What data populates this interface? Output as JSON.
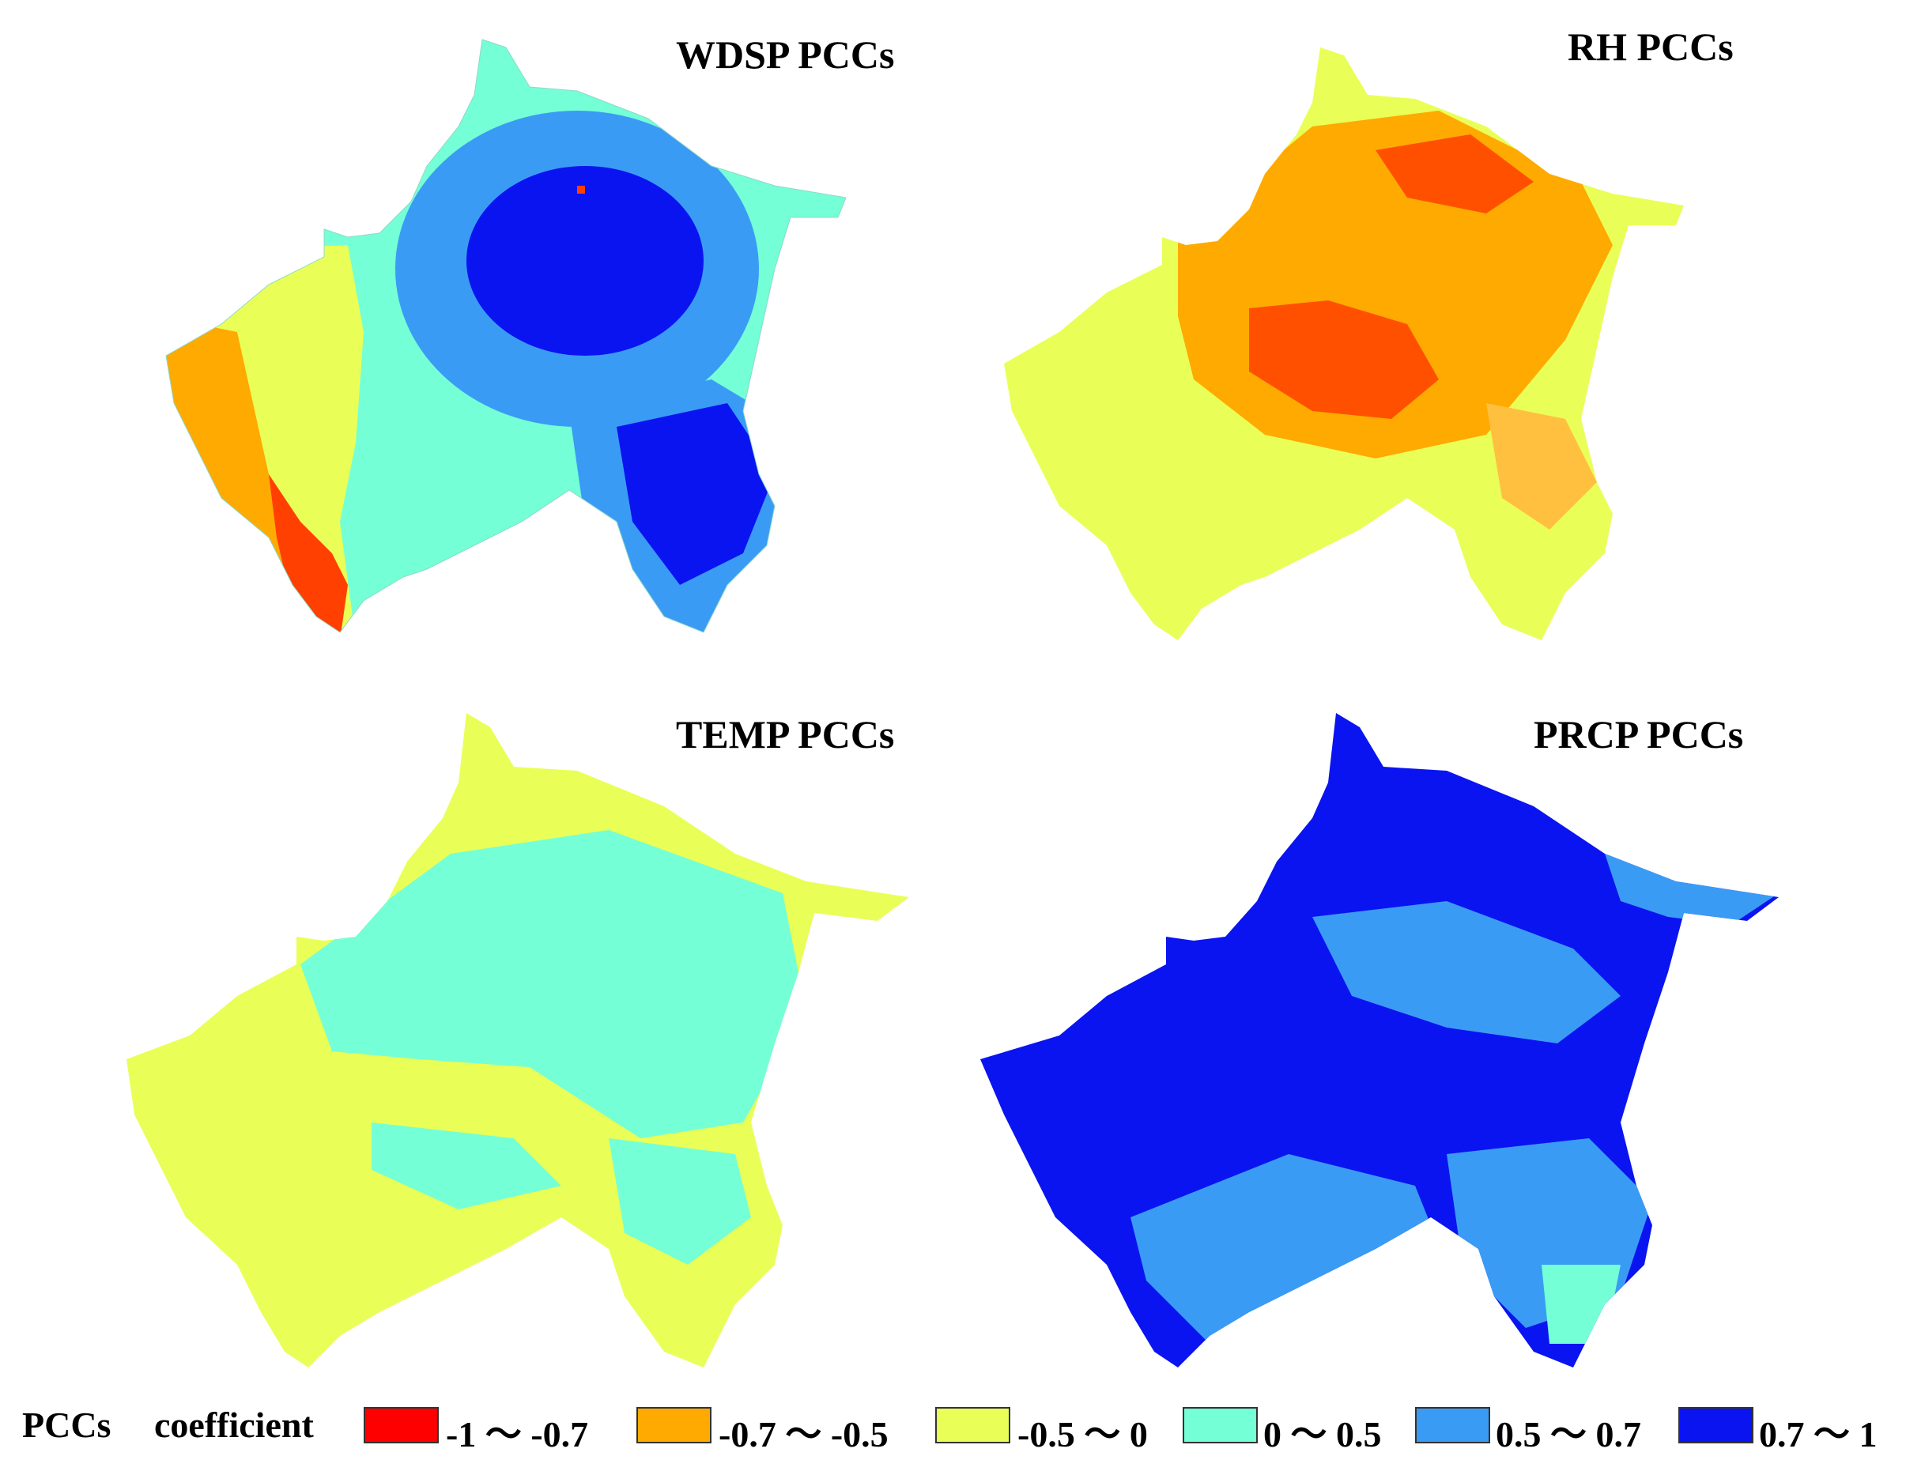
{
  "panels": [
    {
      "id": "wdsp",
      "title": "WDSP PCCs"
    },
    {
      "id": "rh",
      "title": "RH PCCs"
    },
    {
      "id": "temp",
      "title": "TEMP PCCs"
    },
    {
      "id": "prcp",
      "title": "PRCP PCCs"
    }
  ],
  "legend": {
    "title_part1": "PCCs",
    "title_part2": "coefficient",
    "classes": [
      {
        "label": "-1 ～ -0.7",
        "color": "#ff0000"
      },
      {
        "label": "-0.7 ～ -0.5",
        "color": "#ffaa00"
      },
      {
        "label": "-0.5 ～ 0",
        "color": "#e9ff57"
      },
      {
        "label": "0 ～ 0.5",
        "color": "#74ffd6"
      },
      {
        "label": "0.5 ～ 0.7",
        "color": "#3a9bf5"
      },
      {
        "label": "0.7 ～ 1",
        "color": "#0a14f0"
      }
    ]
  }
}
